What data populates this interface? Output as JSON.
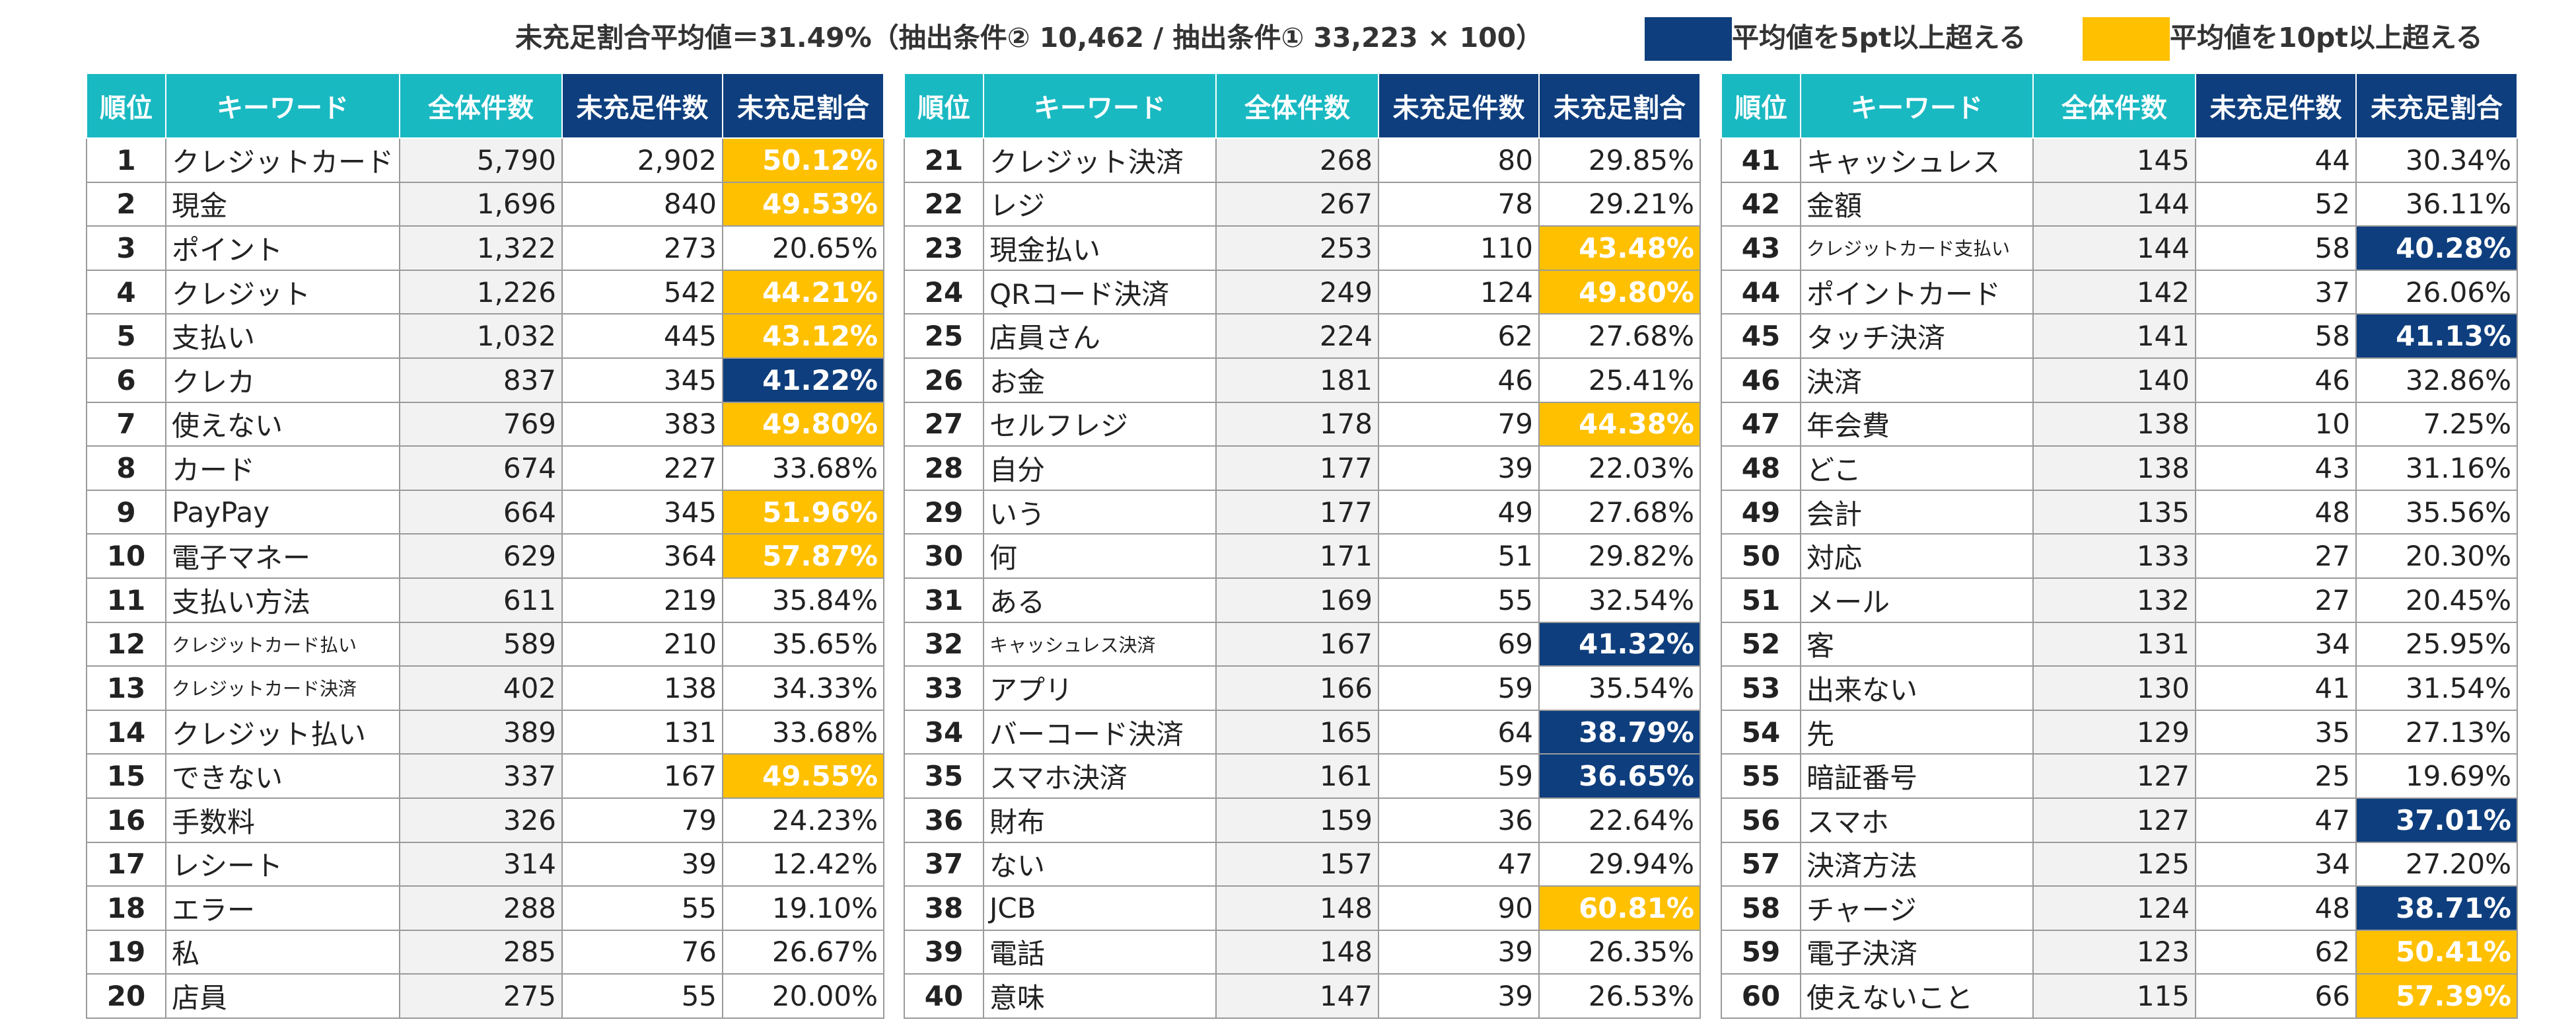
{
  "summary": "未充足割合平均値＝31.49%（抽出条件② 10,462 / 抽出条件① 33,223 × 100）",
  "legend": {
    "navy": {
      "label": "平均値を5pt以上超える",
      "color": "#0e3e7d"
    },
    "gold": {
      "label": "平均値を10pt以上超える",
      "color": "#ffc000"
    }
  },
  "headers": {
    "rank": "順位",
    "keyword": "キーワード",
    "total": "全体件数",
    "unfulfilled": "未充足件数",
    "ratio": "未充足割合"
  },
  "rows": [
    {
      "rank": "1",
      "keyword": "クレジットカード",
      "total": "5,790",
      "unfulfilled": "2,902",
      "ratio": "50.12%",
      "level": "gold"
    },
    {
      "rank": "2",
      "keyword": "現金",
      "total": "1,696",
      "unfulfilled": "840",
      "ratio": "49.53%",
      "level": "gold"
    },
    {
      "rank": "3",
      "keyword": "ポイント",
      "total": "1,322",
      "unfulfilled": "273",
      "ratio": "20.65%",
      "level": ""
    },
    {
      "rank": "4",
      "keyword": "クレジット",
      "total": "1,226",
      "unfulfilled": "542",
      "ratio": "44.21%",
      "level": "gold"
    },
    {
      "rank": "5",
      "keyword": "支払い",
      "total": "1,032",
      "unfulfilled": "445",
      "ratio": "43.12%",
      "level": "gold"
    },
    {
      "rank": "6",
      "keyword": "クレカ",
      "total": "837",
      "unfulfilled": "345",
      "ratio": "41.22%",
      "level": "navy"
    },
    {
      "rank": "7",
      "keyword": "使えない",
      "total": "769",
      "unfulfilled": "383",
      "ratio": "49.80%",
      "level": "gold"
    },
    {
      "rank": "8",
      "keyword": "カード",
      "total": "674",
      "unfulfilled": "227",
      "ratio": "33.68%",
      "level": ""
    },
    {
      "rank": "9",
      "keyword": "PayPay",
      "total": "664",
      "unfulfilled": "345",
      "ratio": "51.96%",
      "level": "gold"
    },
    {
      "rank": "10",
      "keyword": "電子マネー",
      "total": "629",
      "unfulfilled": "364",
      "ratio": "57.87%",
      "level": "gold"
    },
    {
      "rank": "11",
      "keyword": "支払い方法",
      "total": "611",
      "unfulfilled": "219",
      "ratio": "35.84%",
      "level": ""
    },
    {
      "rank": "12",
      "keyword": "クレジットカード払い",
      "total": "589",
      "unfulfilled": "210",
      "ratio": "35.65%",
      "level": "",
      "small": true
    },
    {
      "rank": "13",
      "keyword": "クレジットカード決済",
      "total": "402",
      "unfulfilled": "138",
      "ratio": "34.33%",
      "level": "",
      "small": true
    },
    {
      "rank": "14",
      "keyword": "クレジット払い",
      "total": "389",
      "unfulfilled": "131",
      "ratio": "33.68%",
      "level": ""
    },
    {
      "rank": "15",
      "keyword": "できない",
      "total": "337",
      "unfulfilled": "167",
      "ratio": "49.55%",
      "level": "gold"
    },
    {
      "rank": "16",
      "keyword": "手数料",
      "total": "326",
      "unfulfilled": "79",
      "ratio": "24.23%",
      "level": ""
    },
    {
      "rank": "17",
      "keyword": "レシート",
      "total": "314",
      "unfulfilled": "39",
      "ratio": "12.42%",
      "level": ""
    },
    {
      "rank": "18",
      "keyword": "エラー",
      "total": "288",
      "unfulfilled": "55",
      "ratio": "19.10%",
      "level": ""
    },
    {
      "rank": "19",
      "keyword": "私",
      "total": "285",
      "unfulfilled": "76",
      "ratio": "26.67%",
      "level": ""
    },
    {
      "rank": "20",
      "keyword": "店員",
      "total": "275",
      "unfulfilled": "55",
      "ratio": "20.00%",
      "level": ""
    },
    {
      "rank": "21",
      "keyword": "クレジット決済",
      "total": "268",
      "unfulfilled": "80",
      "ratio": "29.85%",
      "level": ""
    },
    {
      "rank": "22",
      "keyword": "レジ",
      "total": "267",
      "unfulfilled": "78",
      "ratio": "29.21%",
      "level": ""
    },
    {
      "rank": "23",
      "keyword": "現金払い",
      "total": "253",
      "unfulfilled": "110",
      "ratio": "43.48%",
      "level": "gold"
    },
    {
      "rank": "24",
      "keyword": "QRコード決済",
      "total": "249",
      "unfulfilled": "124",
      "ratio": "49.80%",
      "level": "gold"
    },
    {
      "rank": "25",
      "keyword": "店員さん",
      "total": "224",
      "unfulfilled": "62",
      "ratio": "27.68%",
      "level": ""
    },
    {
      "rank": "26",
      "keyword": "お金",
      "total": "181",
      "unfulfilled": "46",
      "ratio": "25.41%",
      "level": ""
    },
    {
      "rank": "27",
      "keyword": "セルフレジ",
      "total": "178",
      "unfulfilled": "79",
      "ratio": "44.38%",
      "level": "gold"
    },
    {
      "rank": "28",
      "keyword": "自分",
      "total": "177",
      "unfulfilled": "39",
      "ratio": "22.03%",
      "level": ""
    },
    {
      "rank": "29",
      "keyword": "いう",
      "total": "177",
      "unfulfilled": "49",
      "ratio": "27.68%",
      "level": ""
    },
    {
      "rank": "30",
      "keyword": "何",
      "total": "171",
      "unfulfilled": "51",
      "ratio": "29.82%",
      "level": ""
    },
    {
      "rank": "31",
      "keyword": "ある",
      "total": "169",
      "unfulfilled": "55",
      "ratio": "32.54%",
      "level": ""
    },
    {
      "rank": "32",
      "keyword": "キャッシュレス決済",
      "total": "167",
      "unfulfilled": "69",
      "ratio": "41.32%",
      "level": "navy",
      "small": true
    },
    {
      "rank": "33",
      "keyword": "アプリ",
      "total": "166",
      "unfulfilled": "59",
      "ratio": "35.54%",
      "level": ""
    },
    {
      "rank": "34",
      "keyword": "バーコード決済",
      "total": "165",
      "unfulfilled": "64",
      "ratio": "38.79%",
      "level": "navy"
    },
    {
      "rank": "35",
      "keyword": "スマホ決済",
      "total": "161",
      "unfulfilled": "59",
      "ratio": "36.65%",
      "level": "navy"
    },
    {
      "rank": "36",
      "keyword": "財布",
      "total": "159",
      "unfulfilled": "36",
      "ratio": "22.64%",
      "level": ""
    },
    {
      "rank": "37",
      "keyword": "ない",
      "total": "157",
      "unfulfilled": "47",
      "ratio": "29.94%",
      "level": ""
    },
    {
      "rank": "38",
      "keyword": "JCB",
      "total": "148",
      "unfulfilled": "90",
      "ratio": "60.81%",
      "level": "gold"
    },
    {
      "rank": "39",
      "keyword": "電話",
      "total": "148",
      "unfulfilled": "39",
      "ratio": "26.35%",
      "level": ""
    },
    {
      "rank": "40",
      "keyword": "意味",
      "total": "147",
      "unfulfilled": "39",
      "ratio": "26.53%",
      "level": ""
    },
    {
      "rank": "41",
      "keyword": "キャッシュレス",
      "total": "145",
      "unfulfilled": "44",
      "ratio": "30.34%",
      "level": ""
    },
    {
      "rank": "42",
      "keyword": "金額",
      "total": "144",
      "unfulfilled": "52",
      "ratio": "36.11%",
      "level": ""
    },
    {
      "rank": "43",
      "keyword": "クレジットカード支払い",
      "total": "144",
      "unfulfilled": "58",
      "ratio": "40.28%",
      "level": "navy",
      "small": true
    },
    {
      "rank": "44",
      "keyword": "ポイントカード",
      "total": "142",
      "unfulfilled": "37",
      "ratio": "26.06%",
      "level": ""
    },
    {
      "rank": "45",
      "keyword": "タッチ決済",
      "total": "141",
      "unfulfilled": "58",
      "ratio": "41.13%",
      "level": "navy"
    },
    {
      "rank": "46",
      "keyword": "決済",
      "total": "140",
      "unfulfilled": "46",
      "ratio": "32.86%",
      "level": ""
    },
    {
      "rank": "47",
      "keyword": "年会費",
      "total": "138",
      "unfulfilled": "10",
      "ratio": "7.25%",
      "level": ""
    },
    {
      "rank": "48",
      "keyword": "どこ",
      "total": "138",
      "unfulfilled": "43",
      "ratio": "31.16%",
      "level": ""
    },
    {
      "rank": "49",
      "keyword": "会計",
      "total": "135",
      "unfulfilled": "48",
      "ratio": "35.56%",
      "level": ""
    },
    {
      "rank": "50",
      "keyword": "対応",
      "total": "133",
      "unfulfilled": "27",
      "ratio": "20.30%",
      "level": ""
    },
    {
      "rank": "51",
      "keyword": "メール",
      "total": "132",
      "unfulfilled": "27",
      "ratio": "20.45%",
      "level": ""
    },
    {
      "rank": "52",
      "keyword": "客",
      "total": "131",
      "unfulfilled": "34",
      "ratio": "25.95%",
      "level": ""
    },
    {
      "rank": "53",
      "keyword": "出来ない",
      "total": "130",
      "unfulfilled": "41",
      "ratio": "31.54%",
      "level": ""
    },
    {
      "rank": "54",
      "keyword": "先",
      "total": "129",
      "unfulfilled": "35",
      "ratio": "27.13%",
      "level": ""
    },
    {
      "rank": "55",
      "keyword": "暗証番号",
      "total": "127",
      "unfulfilled": "25",
      "ratio": "19.69%",
      "level": ""
    },
    {
      "rank": "56",
      "keyword": "スマホ",
      "total": "127",
      "unfulfilled": "47",
      "ratio": "37.01%",
      "level": "navy"
    },
    {
      "rank": "57",
      "keyword": "決済方法",
      "total": "125",
      "unfulfilled": "34",
      "ratio": "27.20%",
      "level": ""
    },
    {
      "rank": "58",
      "keyword": "チャージ",
      "total": "124",
      "unfulfilled": "48",
      "ratio": "38.71%",
      "level": "navy"
    },
    {
      "rank": "59",
      "keyword": "電子決済",
      "total": "123",
      "unfulfilled": "62",
      "ratio": "50.41%",
      "level": "gold"
    },
    {
      "rank": "60",
      "keyword": "使えないこと",
      "total": "115",
      "unfulfilled": "66",
      "ratio": "57.39%",
      "level": "gold"
    }
  ]
}
